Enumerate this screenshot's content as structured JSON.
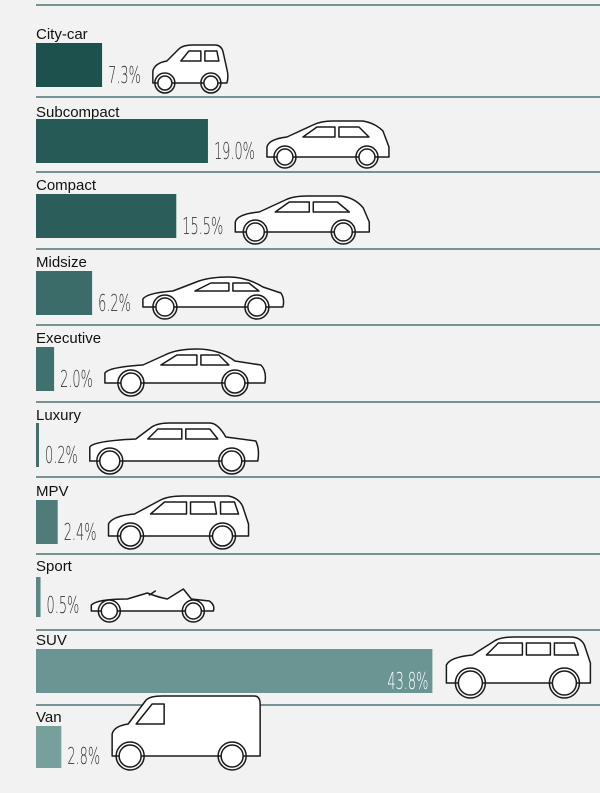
{
  "chart_data": {
    "type": "bar",
    "orientation": "horizontal",
    "categories": [
      "City-car",
      "Subcompact",
      "Compact",
      "Midsize",
      "Executive",
      "Luxury",
      "MPV",
      "Sport",
      "SUV",
      "Van"
    ],
    "values": [
      7.3,
      19.0,
      15.5,
      6.2,
      2.0,
      0.2,
      2.4,
      0.5,
      43.8,
      2.8
    ],
    "value_labels": [
      "7.3%",
      "19.0%",
      "15.5%",
      "6.2%",
      "2.0%",
      "0.2%",
      "2.4%",
      "0.5%",
      "43.8%",
      "2.8%"
    ],
    "unit": "%",
    "xlim": [
      0,
      45
    ],
    "bar_colors": [
      "#1d514d",
      "#265a57",
      "#2b5e5b",
      "#3b6c69",
      "#3f716e",
      "#446f6b",
      "#4f7c79",
      "#5a8683",
      "#6a9592",
      "#779f9c"
    ],
    "icons": [
      "city-car-icon",
      "subcompact-car-icon",
      "compact-car-icon",
      "midsize-car-icon",
      "executive-car-icon",
      "luxury-car-icon",
      "mpv-car-icon",
      "sport-car-icon",
      "suv-car-icon",
      "van-icon"
    ]
  }
}
